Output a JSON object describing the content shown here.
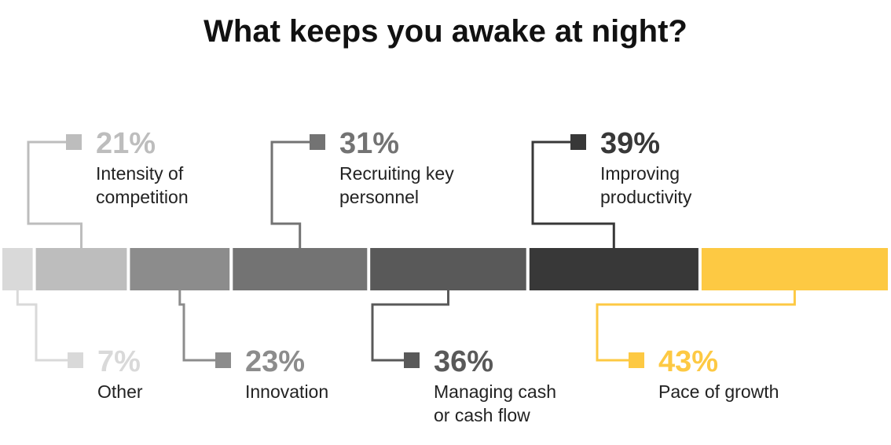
{
  "chart_data": {
    "type": "bar",
    "title": "What keeps you awake at night?",
    "categories": [
      "Other",
      "Intensity of competition",
      "Innovation",
      "Recruiting key personnel",
      "Managing cash or cash flow",
      "Improving productivity",
      "Pace of growth"
    ],
    "values": [
      7,
      21,
      23,
      31,
      36,
      39,
      43
    ],
    "unit": "%",
    "colors": [
      "#d9d9d9",
      "#bdbdbd",
      "#8c8c8c",
      "#737373",
      "#595959",
      "#383838",
      "#fdc943"
    ],
    "items": [
      {
        "value": 7,
        "pct_label": "7%",
        "label_lines": [
          "Other"
        ],
        "color": "#d9d9d9",
        "text_color": "#d9d9d9",
        "callout": "below"
      },
      {
        "value": 21,
        "pct_label": "21%",
        "label_lines": [
          "Intensity of",
          "competition"
        ],
        "color": "#bdbdbd",
        "text_color": "#bdbdbd",
        "callout": "above"
      },
      {
        "value": 23,
        "pct_label": "23%",
        "label_lines": [
          "Innovation"
        ],
        "color": "#8c8c8c",
        "text_color": "#8c8c8c",
        "callout": "below"
      },
      {
        "value": 31,
        "pct_label": "31%",
        "label_lines": [
          "Recruiting key",
          "personnel"
        ],
        "color": "#737373",
        "text_color": "#737373",
        "callout": "above"
      },
      {
        "value": 36,
        "pct_label": "36%",
        "label_lines": [
          "Managing cash",
          "or cash flow"
        ],
        "color": "#595959",
        "text_color": "#595959",
        "callout": "below"
      },
      {
        "value": 39,
        "pct_label": "39%",
        "label_lines": [
          "Improving",
          "productivity"
        ],
        "color": "#383838",
        "text_color": "#383838",
        "callout": "above"
      },
      {
        "value": 43,
        "pct_label": "43%",
        "label_lines": [
          "Pace of growth"
        ],
        "color": "#fdc943",
        "text_color": "#fdc943",
        "callout": "below"
      }
    ]
  }
}
